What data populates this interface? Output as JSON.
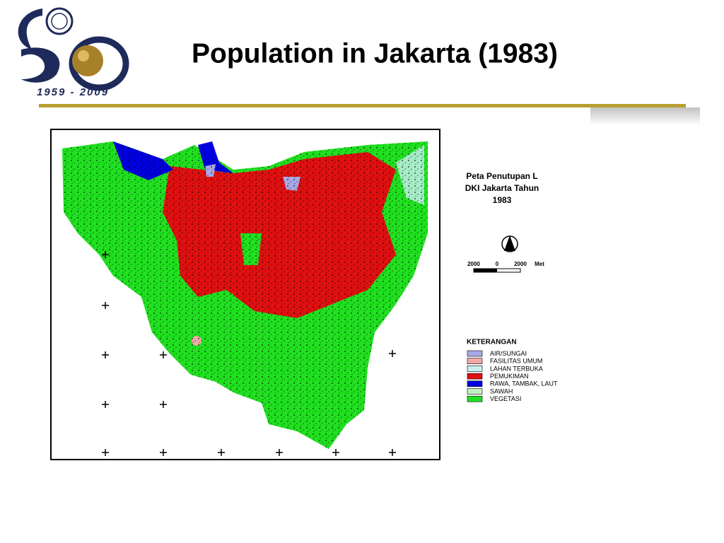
{
  "header": {
    "title": "Population in Jakarta (1983)",
    "logo_years": "1959 - 2009"
  },
  "map": {
    "title_lines": [
      "Peta Penutupan L",
      "DKI Jakarta Tahun",
      "1983"
    ],
    "scale_labels": [
      "2000",
      "0",
      "2000",
      "Met"
    ],
    "legend": {
      "title": "KETERANGAN",
      "items": [
        {
          "label": "AIR/SUNGAI",
          "color": "#a8a8e8"
        },
        {
          "label": "FASILITAS UMUM",
          "color": "#f0a8a8"
        },
        {
          "label": "LAHAN TERBUKA",
          "color": "#c8f0f0"
        },
        {
          "label": "PEMUKIMAN",
          "color": "#e01010"
        },
        {
          "label": "RAWA, TAMBAK, LAUT",
          "color": "#0000e0"
        },
        {
          "label": "SAWAH",
          "color": "#c0f0c0"
        },
        {
          "label": "VEGETASI",
          "color": "#20e020"
        }
      ]
    }
  }
}
